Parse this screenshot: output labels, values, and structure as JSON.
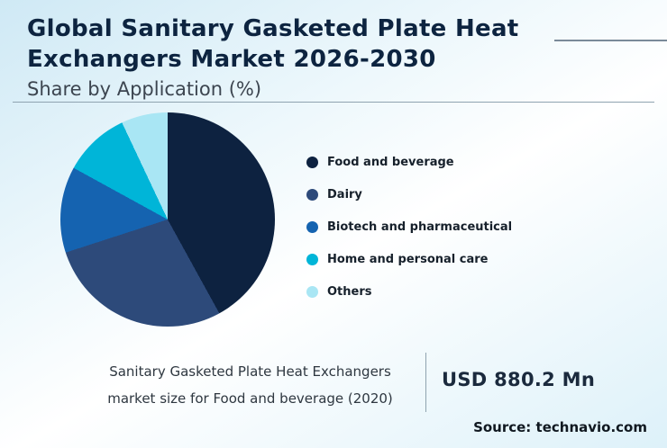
{
  "header": {
    "title": "Global Sanitary Gasketed Plate Heat Exchangers Market 2026-2030",
    "subtitle": "Share by Application (%)"
  },
  "chart_data": {
    "type": "pie",
    "title": "Share by Application (%)",
    "labels": [
      "Food and beverage",
      "Dairy",
      "Biotech and pharmaceutical",
      "Home and personal care",
      "Others"
    ],
    "values": [
      42,
      28,
      13,
      10,
      7
    ],
    "colors": [
      "#0d2240",
      "#2d4a7a",
      "#1563b0",
      "#00b5d8",
      "#a9e6f4"
    ],
    "start_angle_deg": 0,
    "direction": "clockwise",
    "legend_position": "right"
  },
  "footer": {
    "note_line1": "Sanitary Gasketed Plate Heat Exchangers",
    "note_line2": "market size for Food and beverage (2020)",
    "value": "USD 880.2 Mn",
    "source": "Source: technavio.com"
  }
}
